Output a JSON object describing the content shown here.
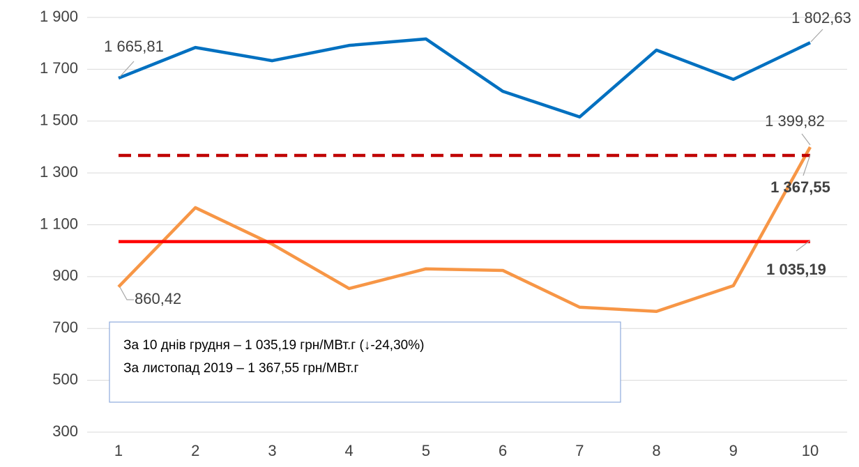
{
  "chart_data": {
    "type": "line",
    "categories": [
      "1",
      "2",
      "3",
      "4",
      "5",
      "6",
      "7",
      "8",
      "9",
      "10"
    ],
    "series": [
      {
        "color": "#0070c0",
        "dashed": false,
        "values": [
          1665.81,
          1784,
          1733,
          1792,
          1817,
          1615,
          1516,
          1774,
          1661,
          1802.63
        ],
        "value_labels": [
          "1 665,81",
          null,
          null,
          null,
          null,
          null,
          null,
          null,
          null,
          "1 802,63"
        ]
      },
      {
        "color": "#f79646",
        "dashed": false,
        "values": [
          860.42,
          1166,
          1025,
          854,
          930,
          924,
          782,
          766,
          865,
          1399.82
        ],
        "value_labels": [
          "860,42",
          null,
          null,
          null,
          null,
          null,
          null,
          null,
          null,
          "1 399,82"
        ]
      },
      {
        "color": "#c00000",
        "dashed": true,
        "values": [
          1367.55,
          1367.55,
          1367.55,
          1367.55,
          1367.55,
          1367.55,
          1367.55,
          1367.55,
          1367.55,
          1367.55
        ],
        "value_labels": [
          null,
          null,
          null,
          null,
          null,
          null,
          null,
          null,
          null,
          "1 367,55"
        ]
      },
      {
        "color": "#ff0000",
        "dashed": false,
        "values": [
          1035.19,
          1035.19,
          1035.19,
          1035.19,
          1035.19,
          1035.19,
          1035.19,
          1035.19,
          1035.19,
          1035.19
        ],
        "value_labels": [
          null,
          null,
          null,
          null,
          null,
          null,
          null,
          null,
          null,
          "1 035,19"
        ]
      }
    ],
    "ylim": [
      300,
      1900
    ],
    "yticks": [
      300,
      500,
      700,
      900,
      {
        "value": 1100,
        "label": "1 100"
      },
      {
        "value": 1300,
        "label": "1 300"
      },
      {
        "value": 1500,
        "label": "1 500"
      },
      {
        "value": 1700,
        "label": "1 700"
      },
      {
        "value": 1900,
        "label": "1 900"
      }
    ],
    "grid": true,
    "annotations": [
      "За 10 днів грудня – 1 035,19 грн/МВт.г (↓-24,30%)",
      "За листопад 2019 – 1 367,55 грн/МВт.г"
    ]
  }
}
